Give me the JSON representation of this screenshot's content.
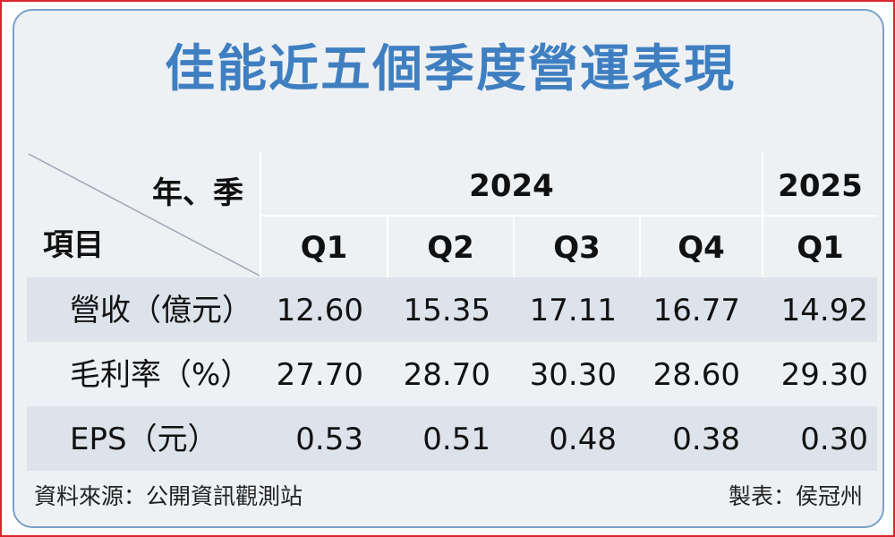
{
  "title": "佳能近五個季度營運表現",
  "chart_data": {
    "type": "table",
    "corner_top": "年、季",
    "corner_bottom": "項目",
    "years": [
      {
        "label": "2024",
        "span": 4
      },
      {
        "label": "2025",
        "span": 1
      }
    ],
    "quarters": [
      "Q1",
      "Q2",
      "Q3",
      "Q4",
      "Q1"
    ],
    "rows": [
      {
        "label": "營收（億元）",
        "values": [
          "12.60",
          "15.35",
          "17.11",
          "16.77",
          "14.92"
        ]
      },
      {
        "label": "毛利率（%）",
        "values": [
          "27.70",
          "28.70",
          "30.30",
          "28.60",
          "29.30"
        ]
      },
      {
        "label": "EPS（元）",
        "values": [
          "0.53",
          "0.51",
          "0.48",
          "0.38",
          "0.30"
        ]
      }
    ]
  },
  "source": "資料來源：公開資訊觀測站",
  "credit": "製表：侯冠州",
  "colors": {
    "title": "#3f7fc1",
    "panel_bg": "#eef1f4",
    "row_shade": "#dce3ea",
    "outer_border": "#d9262c",
    "panel_border": "#7aa0c8"
  }
}
